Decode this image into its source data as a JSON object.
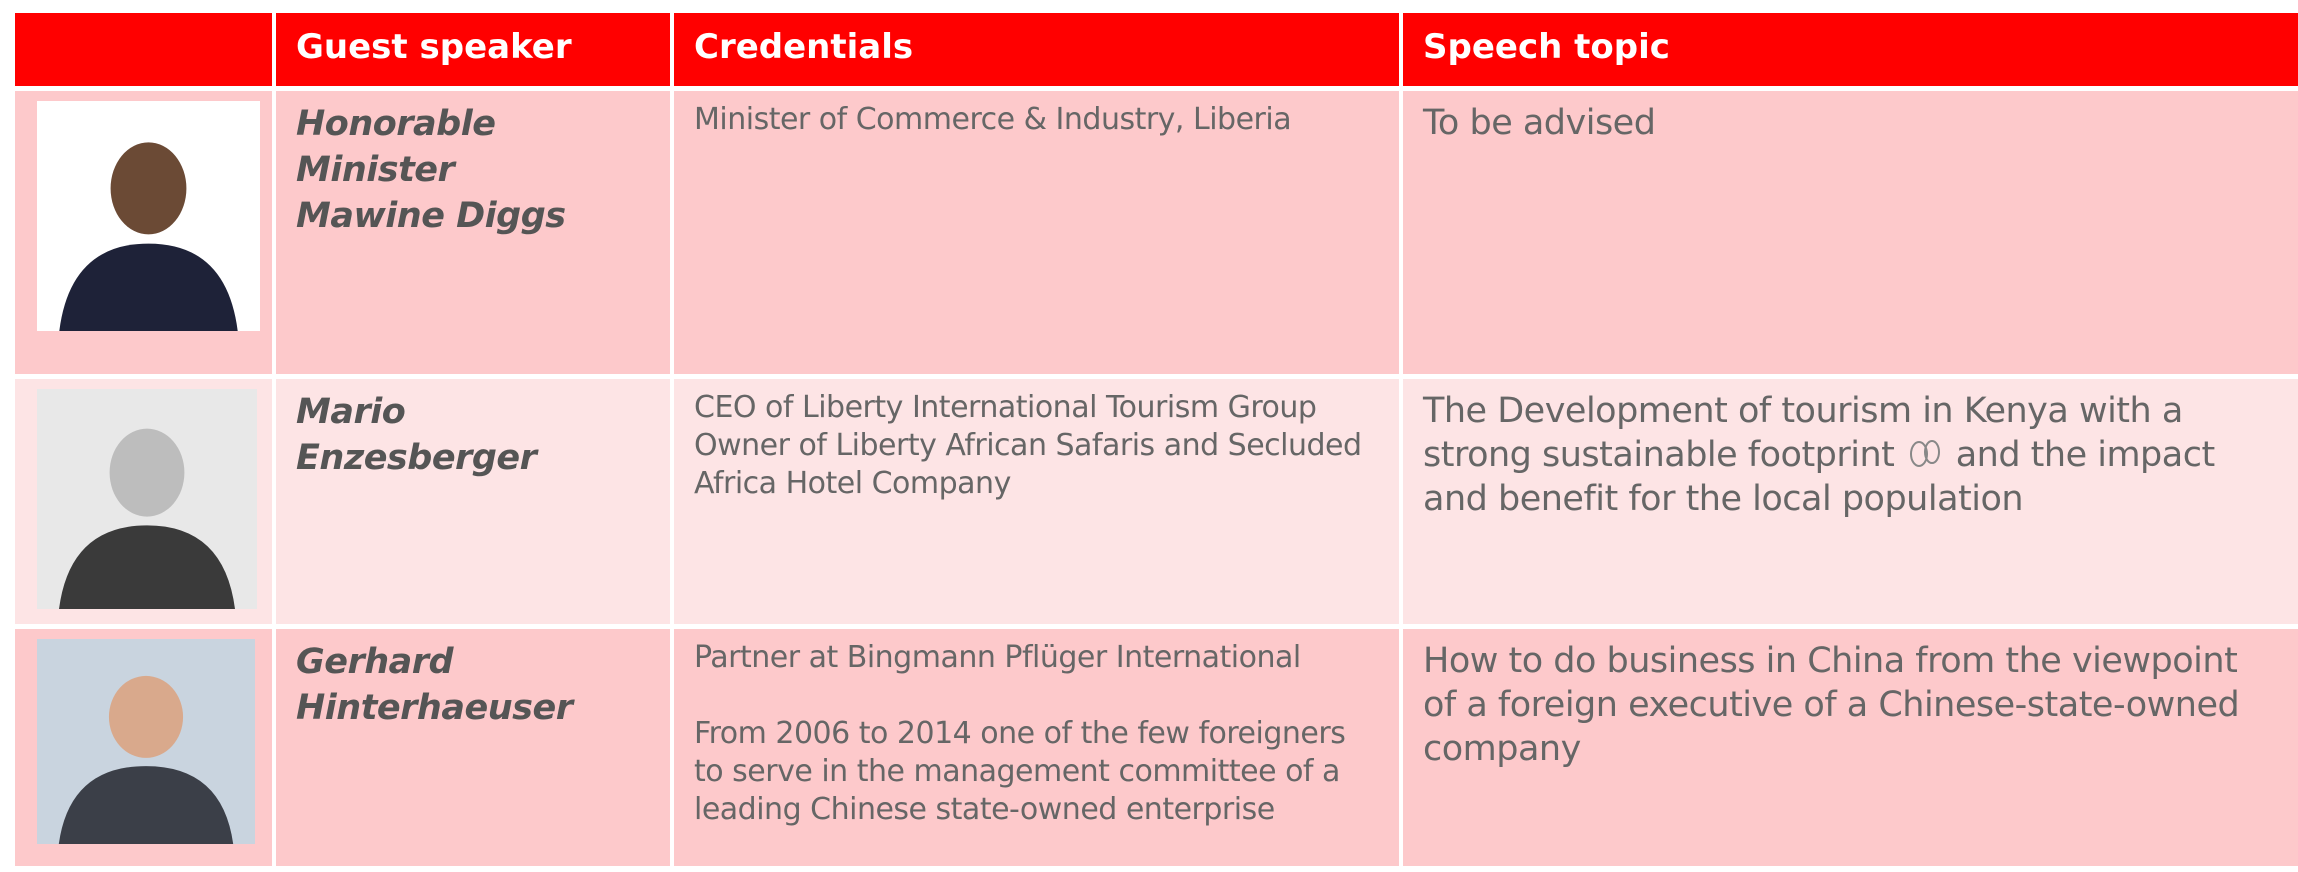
{
  "header": {
    "columns": [
      "Guest speaker",
      "Credentials",
      "Speech topic"
    ]
  },
  "rows": [
    {
      "speaker": [
        "Honorable Minister",
        "Mawine Diggs"
      ],
      "credentials": [
        "Minister of Commerce & Industry, Liberia"
      ],
      "topic": [
        "To be advised"
      ]
    },
    {
      "speaker": [
        "Mario Enzesberger"
      ],
      "credentials": [
        "CEO of Liberty International Tourism Group",
        "Owner of Liberty African Safaris and Secluded Africa Hotel Company"
      ],
      "topic": [
        "The Development of tourism in Kenya with a strong sustainable footprint",
        "and the impact and benefit for the local population"
      ]
    },
    {
      "speaker": [
        "Gerhard",
        "Hinterhaeuser"
      ],
      "credentials": [
        "Partner at Bingmann Pflüger International",
        "From 2006 to 2014 one of the few foreigners to serve in the management committee of a leading Chinese state-owned enterprise"
      ],
      "topic": [
        "How to do business in China from the viewpoint of a foreign executive of a Chinese-state-owned company"
      ]
    }
  ]
}
